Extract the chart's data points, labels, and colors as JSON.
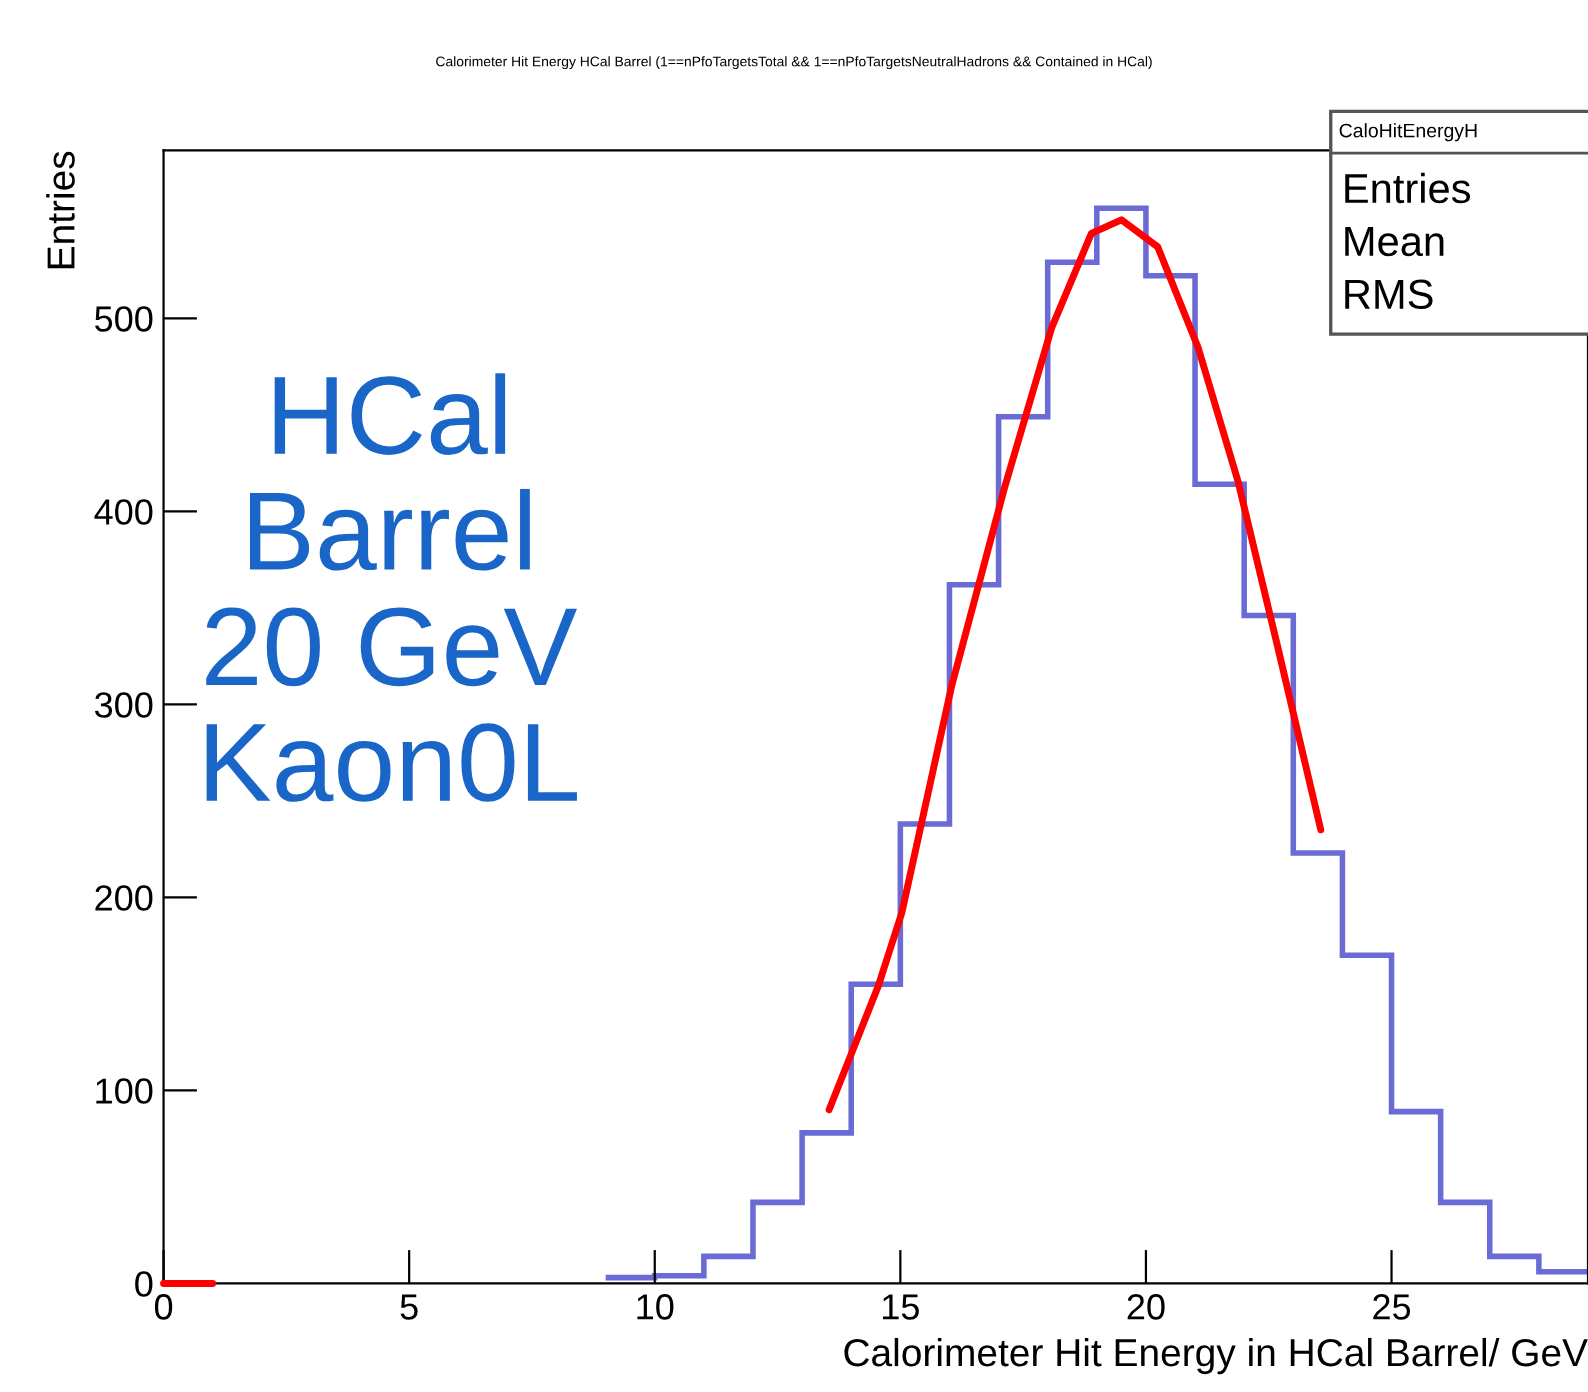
{
  "chart_data": {
    "type": "histogram",
    "title": "Calorimeter Hit Energy HCal Barrel (1==nPfoTargetsTotal && 1==nPfoTargetsNeutralHadrons && Contained in HCal)",
    "xlabel": "Calorimeter Hit Energy in HCal Barrel/ GeV",
    "ylabel": "Entries",
    "bins": [
      9,
      10,
      11,
      12,
      13,
      14,
      15,
      16,
      17,
      18,
      19,
      20,
      21,
      22,
      23,
      24,
      25,
      26,
      27,
      28,
      29
    ],
    "values": [
      3,
      4,
      14,
      42,
      78,
      155,
      238,
      362,
      449,
      529,
      557,
      522,
      414,
      346,
      223,
      170,
      89,
      42,
      14,
      6
    ],
    "color": "#6b6bd6",
    "series": [
      {
        "type": "line",
        "color": "#ff0000",
        "x": [
          13.55,
          14.55,
          15.03,
          16.04,
          17.13,
          18.08,
          18.89,
          19.5,
          20.24,
          21.06,
          21.87,
          22.68,
          23.56
        ],
        "values": [
          90,
          154,
          192,
          309,
          413,
          495,
          544,
          551,
          537,
          485,
          416,
          330,
          235
        ]
      },
      {
        "type": "line",
        "color": "#ff0000",
        "x": [
          0,
          1
        ],
        "values": [
          0,
          0
        ]
      }
    ],
    "xlim": [
      0,
      29
    ],
    "ylim": [
      0,
      587
    ],
    "xticks": [
      0,
      5,
      10,
      15,
      20,
      25
    ],
    "yticks": [
      0,
      100,
      200,
      300,
      400,
      500
    ],
    "grid": false,
    "annotations": [
      "HCal\nBarrel\n20 GeV\nKaon0L",
      "CaloHitEnergyH",
      "Entries",
      "Mean",
      "RMS"
    ]
  }
}
